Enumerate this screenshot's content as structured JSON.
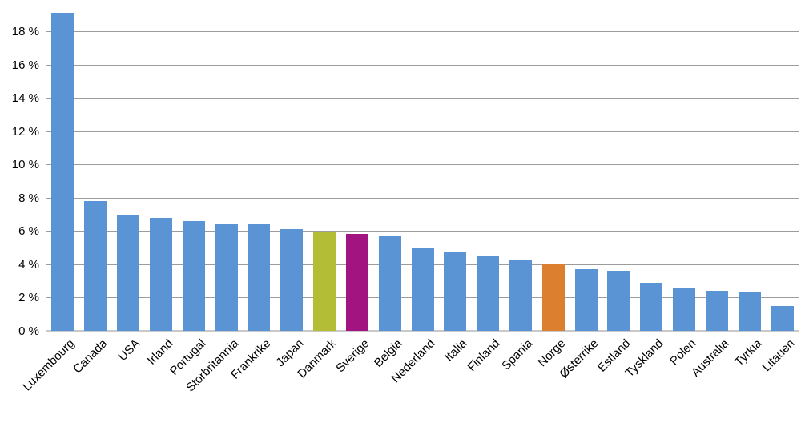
{
  "chart_data": {
    "type": "bar",
    "title": "",
    "xlabel": "",
    "ylabel": "",
    "categories": [
      "Luxembourg",
      "Canada",
      "USA",
      "Irland",
      "Portugal",
      "Storbritannia",
      "Frankrike",
      "Japan",
      "Danmark",
      "Sverige",
      "Belgia",
      "Nederland",
      "Italia",
      "Finland",
      "Spania",
      "Norge",
      "Østerrike",
      "Estland",
      "Tyskland",
      "Polen",
      "Australia",
      "Tyrkia",
      "Litauen"
    ],
    "values": [
      19.1,
      7.8,
      7.0,
      6.8,
      6.6,
      6.4,
      6.4,
      6.1,
      5.9,
      5.8,
      5.7,
      5.0,
      4.7,
      4.5,
      4.3,
      4.0,
      3.7,
      3.6,
      2.9,
      2.6,
      2.4,
      2.3,
      1.5
    ],
    "ylim": [
      0,
      20
    ],
    "yticks": [
      0,
      2,
      4,
      6,
      8,
      10,
      12,
      14,
      16,
      18
    ],
    "ytick_format": "{v} %",
    "grid": true,
    "legend": false,
    "colors": {
      "default": "#5A94D5",
      "highlights": {
        "Danmark": "#B3BD35",
        "Sverige": "#A2147F",
        "Norge": "#DC8030"
      },
      "gridline": "#9C9C9C",
      "baseline": "#C9C9C9",
      "text": "#000000",
      "background": "#FFFFFF"
    }
  }
}
